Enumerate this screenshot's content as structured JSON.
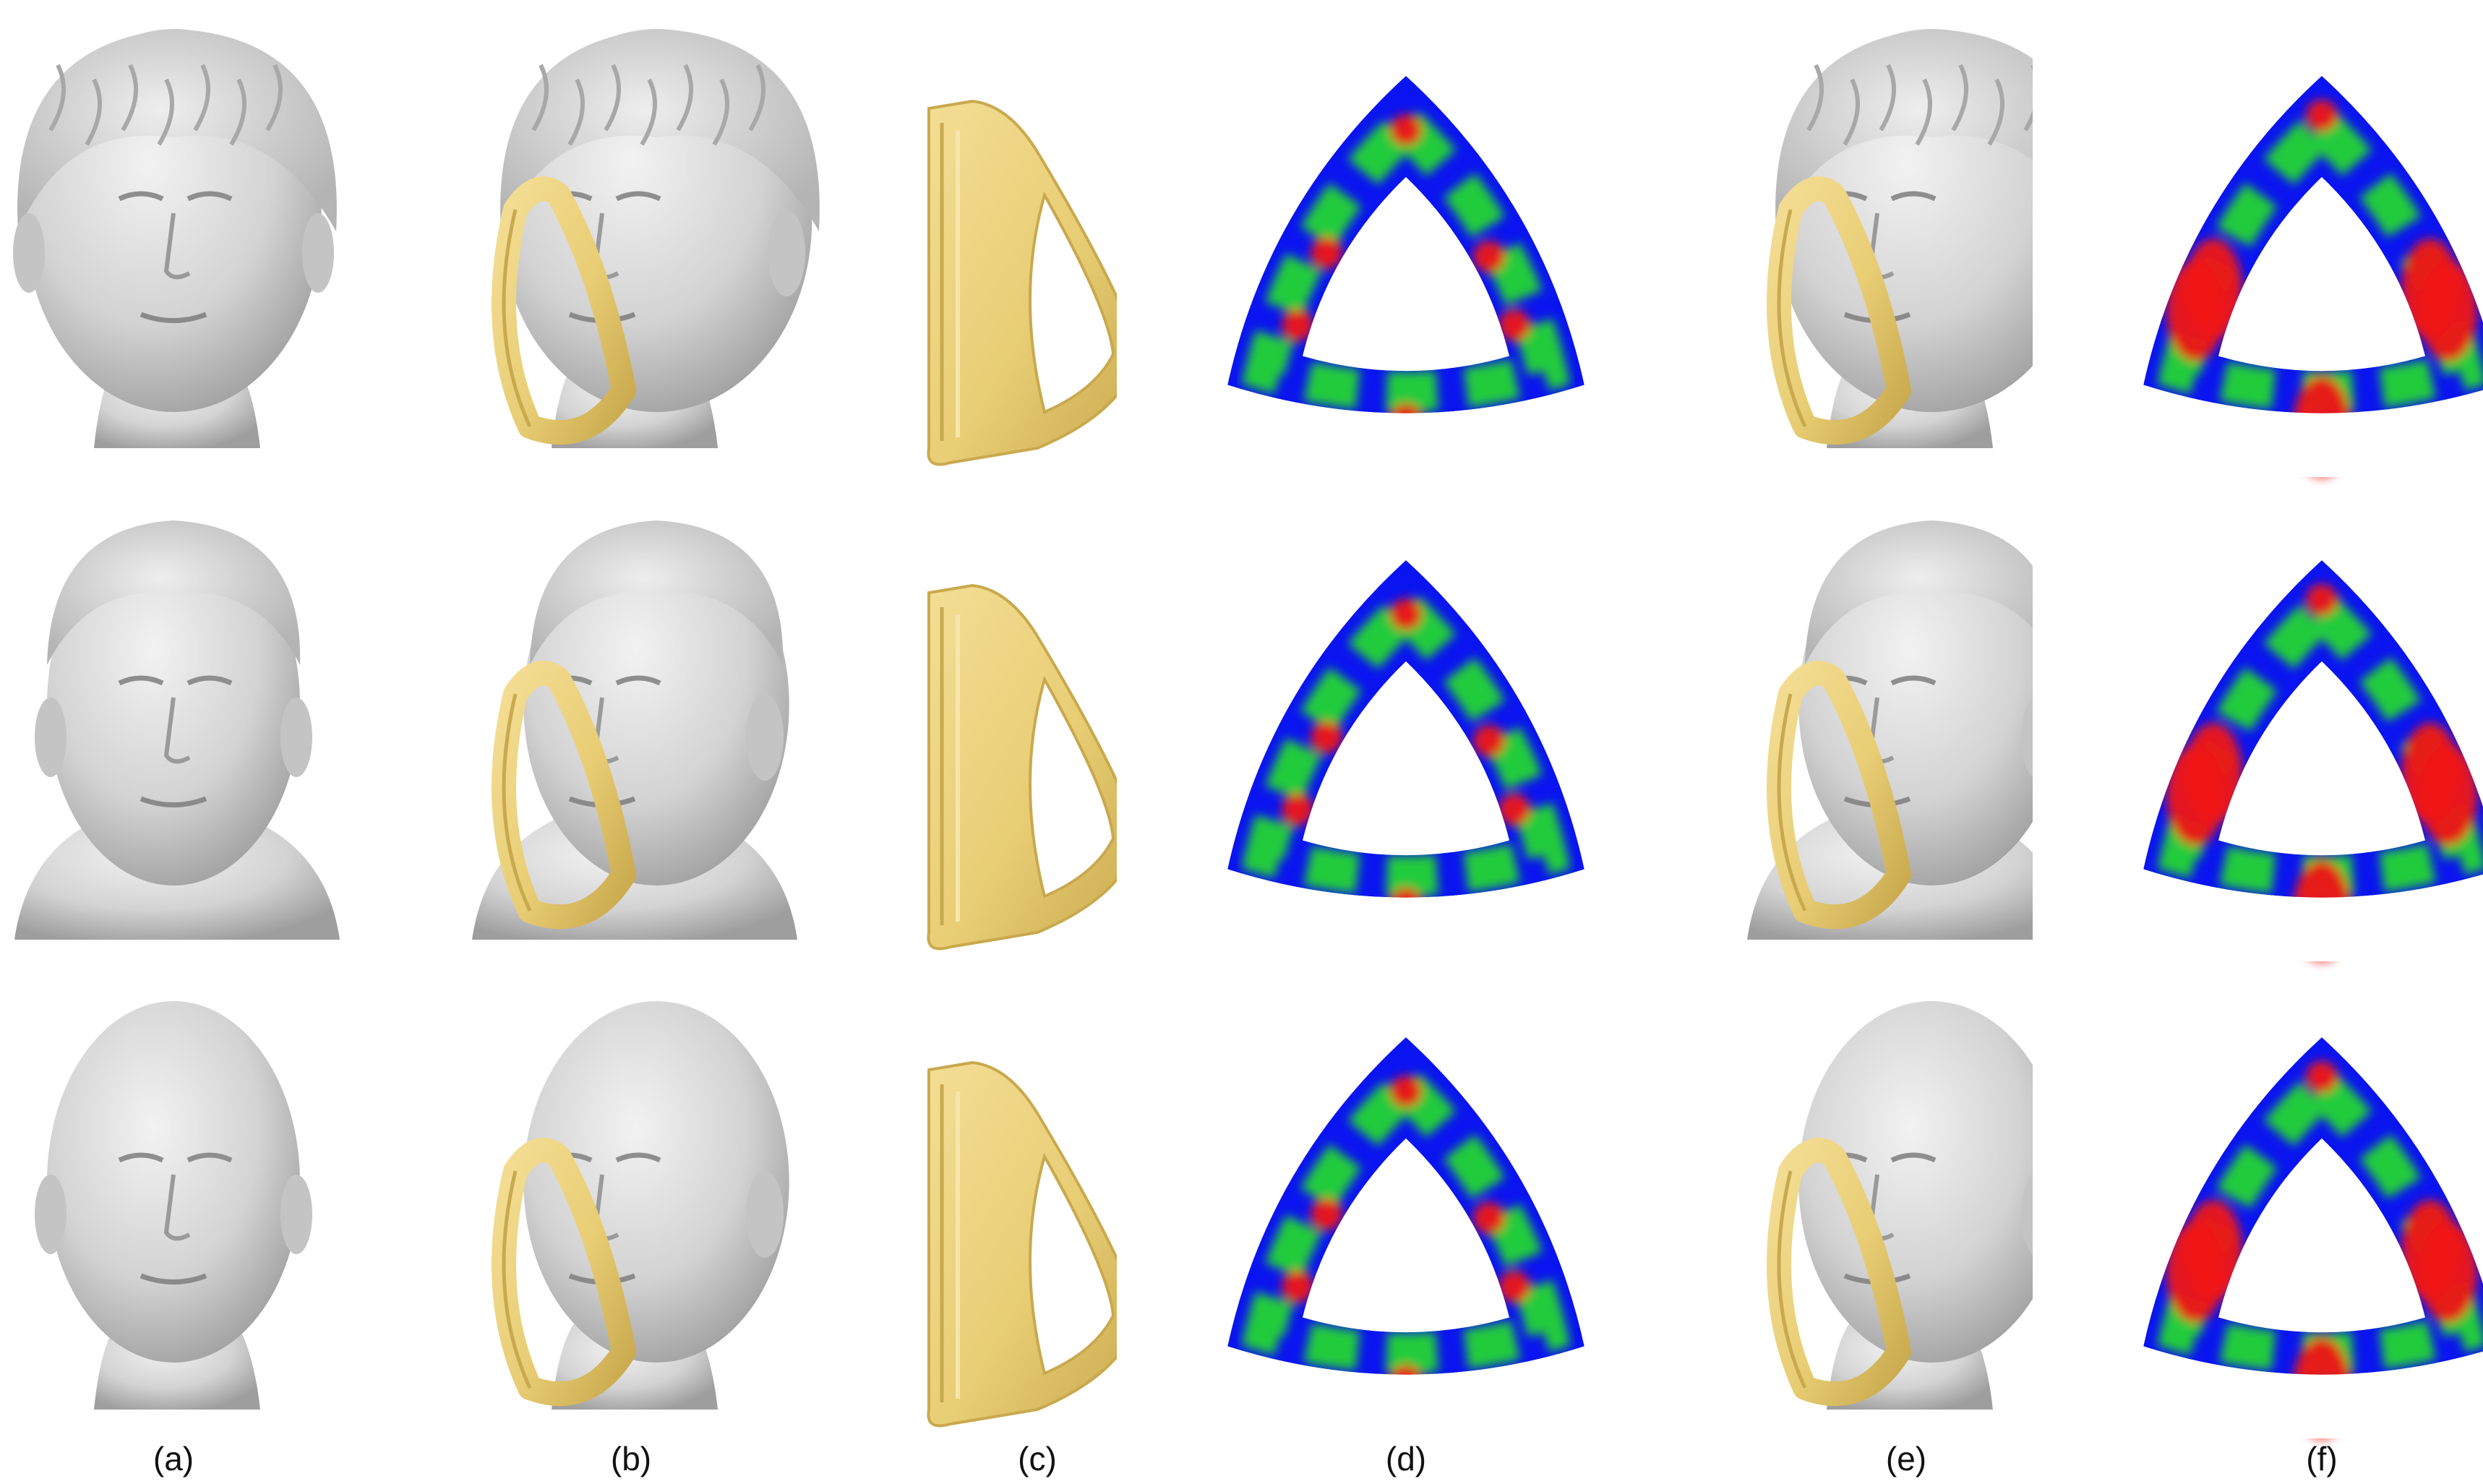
{
  "column_labels": [
    "(a)",
    "(b)",
    "(c)",
    "(d)",
    "(e)",
    "(f)"
  ],
  "rows": [
    {
      "subject": "short-hair-head"
    },
    {
      "subject": "male-bust"
    },
    {
      "subject": "bald-head"
    }
  ],
  "colors": {
    "head_gray": "#d4d4d4",
    "head_shadow": "#9c9c9c",
    "mask_yellow": "#e9cf78",
    "mask_shadow": "#c9a94e",
    "map_low": "#0a14f0",
    "map_mid": "#22e02a",
    "map_high": "#f01414",
    "background": "#ffffff"
  },
  "icons": [
    "head-render-icon",
    "mask-render-icon",
    "pressure-map-icon"
  ]
}
